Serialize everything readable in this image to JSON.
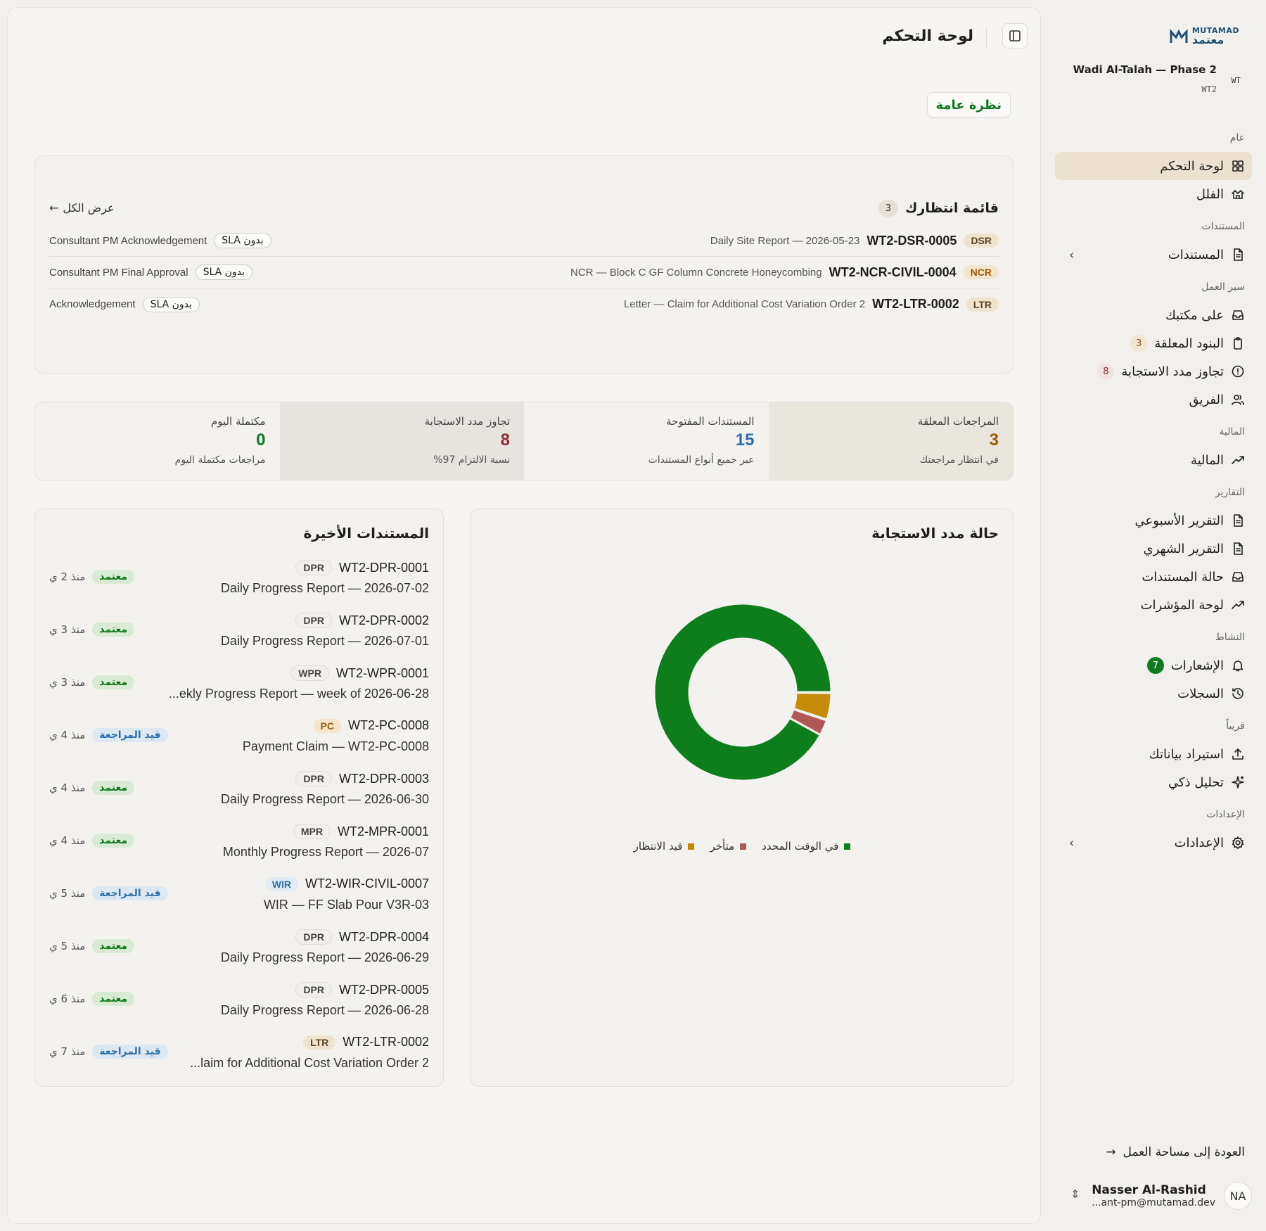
{
  "brand": {
    "name_en": "MUTAMAD",
    "name_ar": "معتمد"
  },
  "project": {
    "name": "Wadi Al-Talah — Phase 2",
    "code": "WT2",
    "badge": "WT"
  },
  "sidebar": {
    "sections": [
      {
        "title": "عام",
        "items": [
          {
            "label": "لوحة التحكم",
            "icon": "grid-icon",
            "active": true
          },
          {
            "label": "الفلل",
            "icon": "villa-icon"
          }
        ]
      },
      {
        "title": "المستندات",
        "items": [
          {
            "label": "المستندات",
            "icon": "document-icon",
            "chevron": true
          }
        ]
      },
      {
        "title": "سير العمل",
        "items": [
          {
            "label": "على مكتبك",
            "icon": "inbox-icon"
          },
          {
            "label": "البنود المعلقة",
            "icon": "clipboard-icon",
            "count": "3",
            "count_style": "amber"
          },
          {
            "label": "تجاوز مدد الاستجابة",
            "icon": "alert-circle-icon",
            "count": "8",
            "count_style": "red"
          },
          {
            "label": "الفريق",
            "icon": "users-icon"
          }
        ]
      },
      {
        "title": "المالية",
        "items": [
          {
            "label": "المالية",
            "icon": "trend-icon"
          }
        ]
      },
      {
        "title": "التقارير",
        "items": [
          {
            "label": "التقرير الأسبوعي",
            "icon": "document-icon"
          },
          {
            "label": "التقرير الشهري",
            "icon": "document-icon"
          },
          {
            "label": "حالة المستندات",
            "icon": "inbox-icon"
          },
          {
            "label": "لوحة المؤشرات",
            "icon": "trend-icon"
          }
        ]
      },
      {
        "title": "النشاط",
        "items": [
          {
            "label": "الإشعارات",
            "icon": "bell-icon",
            "count": "7",
            "count_style": "green"
          },
          {
            "label": "السجلات",
            "icon": "history-icon"
          }
        ]
      },
      {
        "title": "قريباً",
        "items": [
          {
            "label": "استيراد بياناتك",
            "icon": "upload-icon"
          },
          {
            "label": "تحليل ذكي",
            "icon": "sparkle-icon"
          }
        ]
      },
      {
        "title": "الإعدادات",
        "items": [
          {
            "label": "الإعدادات",
            "icon": "gear-icon",
            "chevron": true
          }
        ]
      }
    ],
    "back_link": "العودة إلى مساحة العمل",
    "user": {
      "name": "Nasser Al-Rashid",
      "email": "...ant-pm@mutamad.dev",
      "initials": "NA"
    }
  },
  "header": {
    "title": "لوحة التحكم",
    "tab": "نظرة عامة"
  },
  "queue": {
    "title": "قائمة انتظارك",
    "count": "3",
    "view_all": "عرض الكل",
    "rows": [
      {
        "tag": "DSR",
        "code": "WT2-DSR-0005",
        "desc": "Daily Site Report — 2026-05-23",
        "sla": "بدون SLA",
        "step": "Consultant PM Acknowledgement"
      },
      {
        "tag": "NCR",
        "code": "WT2-NCR-CIVIL-0004",
        "desc": "NCR — Block C GF Column Concrete Honeycombing",
        "sla": "بدون SLA",
        "step": "Consultant PM Final Approval"
      },
      {
        "tag": "LTR",
        "code": "WT2-LTR-0002",
        "desc": "Letter — Claim for Additional Cost Variation Order 2",
        "sla": "بدون SLA",
        "step": "Acknowledgement"
      }
    ]
  },
  "stats": [
    {
      "label": "المراجعات المعلقة",
      "value": "3",
      "sub": "في انتظار مراجعتك",
      "color": "#9a5b0a"
    },
    {
      "label": "المستندات المفتوحة",
      "value": "15",
      "sub": "عبر جميع أنواع المستندات",
      "color": "#2e6fa6"
    },
    {
      "label": "تجاوز مدد الاستجابة",
      "value": "8",
      "sub": "نسبة الالتزام 97%",
      "color": "#8e2f36"
    },
    {
      "label": "مكتملة اليوم",
      "value": "0",
      "sub": "مراجعات مكتملة اليوم",
      "color": "#0f7a1e"
    }
  ],
  "recent": {
    "title": "المستندات الأخيرة",
    "items": [
      {
        "code": "WT2-DPR-0001",
        "tag": "DPR",
        "desc": "Daily Progress Report — 2026-07-02",
        "status": "معتمد",
        "status_type": "approved",
        "time": "منذ 2 ي"
      },
      {
        "code": "WT2-DPR-0002",
        "tag": "DPR",
        "desc": "Daily Progress Report — 2026-07-01",
        "status": "معتمد",
        "status_type": "approved",
        "time": "منذ 3 ي"
      },
      {
        "code": "WT2-WPR-0001",
        "tag": "WPR",
        "desc": "...ekly Progress Report — week of 2026-06-28",
        "status": "معتمد",
        "status_type": "approved",
        "time": "منذ 3 ي"
      },
      {
        "code": "WT2-PC-0008",
        "tag": "PC",
        "desc": "Payment Claim — WT2-PC-0008",
        "status": "قيد المراجعة",
        "status_type": "review",
        "time": "منذ 4 ي"
      },
      {
        "code": "WT2-DPR-0003",
        "tag": "DPR",
        "desc": "Daily Progress Report — 2026-06-30",
        "status": "معتمد",
        "status_type": "approved",
        "time": "منذ 4 ي"
      },
      {
        "code": "WT2-MPR-0001",
        "tag": "MPR",
        "desc": "Monthly Progress Report — 2026-07",
        "status": "معتمد",
        "status_type": "approved",
        "time": "منذ 4 ي"
      },
      {
        "code": "WT2-WIR-CIVIL-0007",
        "tag": "WIR",
        "desc": "WIR — FF Slab Pour V3R-03",
        "status": "قيد المراجعة",
        "status_type": "review",
        "time": "منذ 5 ي"
      },
      {
        "code": "WT2-DPR-0004",
        "tag": "DPR",
        "desc": "Daily Progress Report — 2026-06-29",
        "status": "معتمد",
        "status_type": "approved",
        "time": "منذ 5 ي"
      },
      {
        "code": "WT2-DPR-0005",
        "tag": "DPR",
        "desc": "Daily Progress Report — 2026-06-28",
        "status": "معتمد",
        "status_type": "approved",
        "time": "منذ 6 ي"
      },
      {
        "code": "WT2-LTR-0002",
        "tag": "LTR",
        "desc": "...laim for Additional Cost Variation Order 2",
        "status": "قيد المراجعة",
        "status_type": "review",
        "time": "منذ 7 ي"
      }
    ]
  },
  "sla_chart": {
    "title": "حالة مدد الاستجابة",
    "colors": {
      "on_time": "#0e7d1c",
      "pending": "#c58a07",
      "late": "#b25757"
    }
  },
  "chart_data": {
    "type": "pie",
    "categories": [
      "في الوقت المحدد",
      "قيد الانتظار",
      "متأخر"
    ],
    "values": [
      92,
      5,
      3
    ],
    "legend": [
      "في الوقت المحدد",
      "متأخر",
      "قيد الانتظار"
    ]
  }
}
